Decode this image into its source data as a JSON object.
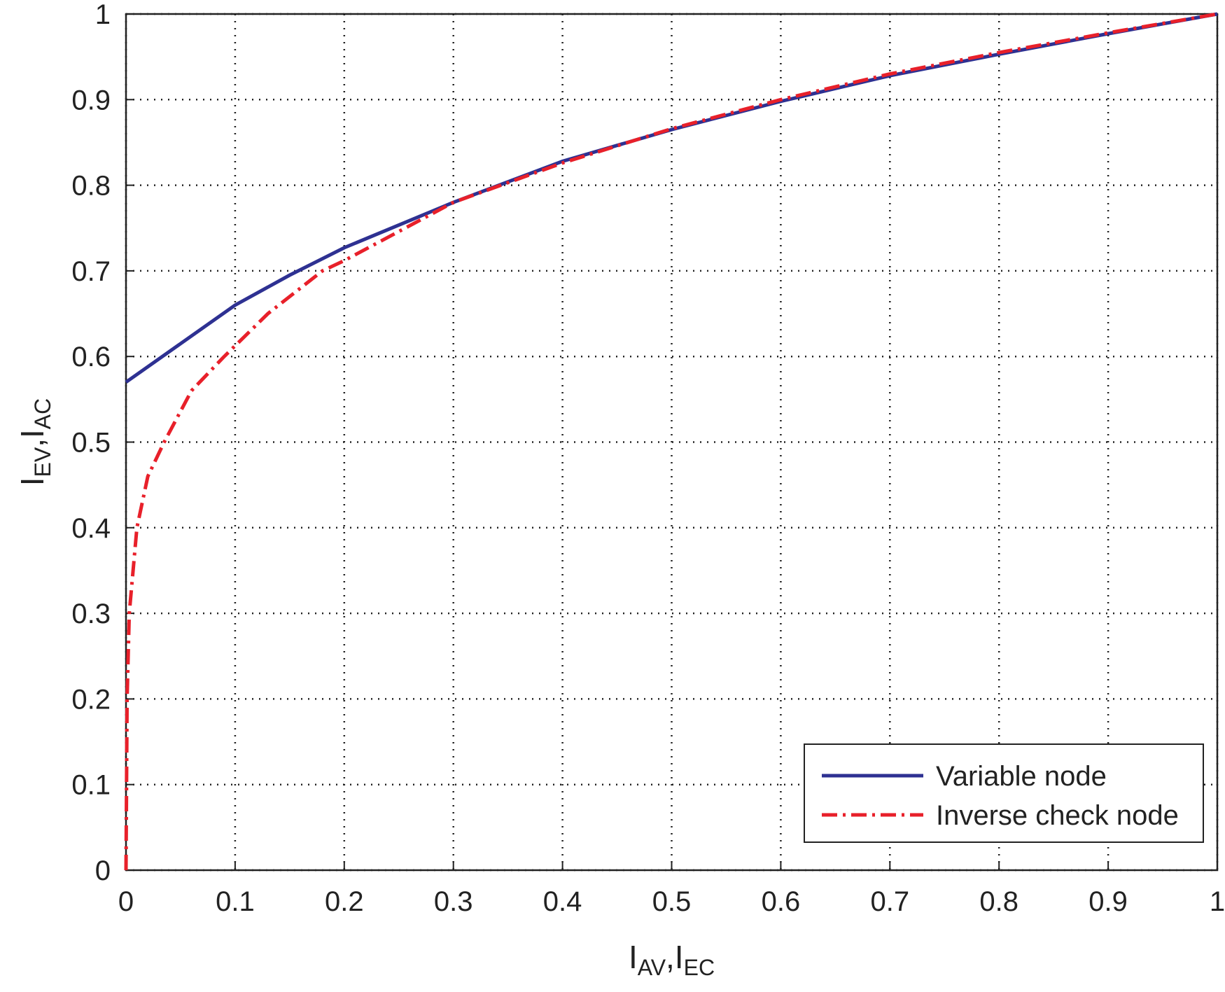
{
  "chart_data": {
    "type": "line",
    "xlabel": {
      "parts": [
        "I",
        "AV",
        ",I",
        "EC"
      ],
      "subscript": [
        false,
        true,
        false,
        true
      ]
    },
    "ylabel": {
      "parts": [
        "I",
        "EV",
        ",I",
        "AC"
      ],
      "subscript": [
        false,
        true,
        false,
        true
      ]
    },
    "xlim": [
      0,
      1
    ],
    "ylim": [
      0,
      1
    ],
    "xticks": [
      0,
      0.1,
      0.2,
      0.3,
      0.4,
      0.5,
      0.6,
      0.7,
      0.8,
      0.9,
      1
    ],
    "yticks": [
      0,
      0.1,
      0.2,
      0.3,
      0.4,
      0.5,
      0.6,
      0.7,
      0.8,
      0.9,
      1
    ],
    "grid": true,
    "legend": "lower right",
    "series": [
      {
        "name": "Variable node",
        "color": "#2e3192",
        "style": "solid",
        "x": [
          0,
          0.05,
          0.1,
          0.15,
          0.2,
          0.3,
          0.4,
          0.5,
          0.6,
          0.7,
          0.8,
          0.9,
          1
        ],
        "values": [
          0.57,
          0.615,
          0.66,
          0.695,
          0.727,
          0.78,
          0.828,
          0.865,
          0.898,
          0.928,
          0.953,
          0.977,
          1
        ]
      },
      {
        "name": "Inverse check node",
        "color": "#e8202a",
        "style": "dashdot",
        "x": [
          0,
          0.001,
          0.003,
          0.01,
          0.02,
          0.035,
          0.06,
          0.09,
          0.13,
          0.18,
          0.2,
          0.3,
          0.4,
          0.5,
          0.6,
          0.7,
          0.8,
          0.9,
          1
        ],
        "values": [
          0,
          0.2,
          0.3,
          0.4,
          0.46,
          0.5,
          0.56,
          0.6,
          0.65,
          0.7,
          0.712,
          0.78,
          0.826,
          0.866,
          0.9,
          0.93,
          0.955,
          0.978,
          1
        ]
      }
    ]
  }
}
